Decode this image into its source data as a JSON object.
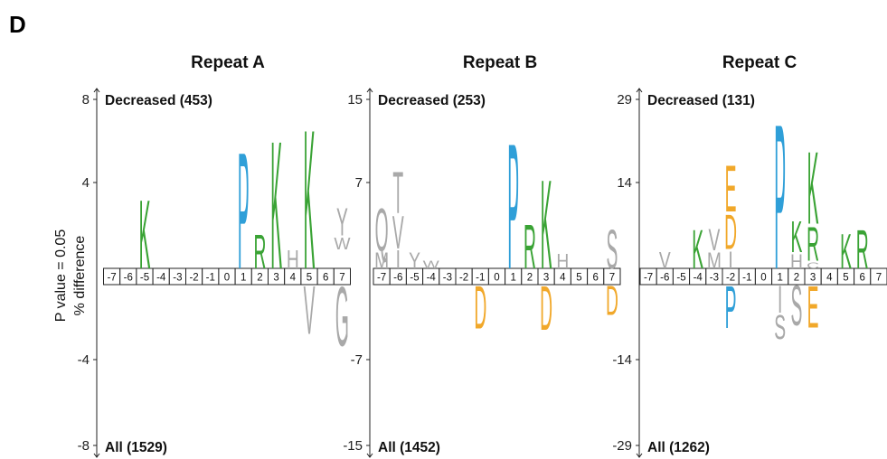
{
  "panel_label": "D",
  "ylabel_line1": "P value = 0.05",
  "ylabel_line2": "% difference",
  "colors": {
    "green": "#3aa335",
    "blue": "#2f9fd8",
    "gray": "#a9a9a9",
    "orange": "#f1a82a"
  },
  "chart_data": [
    {
      "type": "sequence-logo",
      "title": "Repeat A",
      "top_label": "Decreased (453)",
      "bottom_label": "All (1529)",
      "y_ticks": [
        "8",
        "4",
        "-4",
        "-8"
      ],
      "ylim": [
        -8,
        8
      ],
      "positions": [
        "-7",
        "-6",
        "-5",
        "-4",
        "-3",
        "-2",
        "-1",
        "0",
        "1",
        "2",
        "3",
        "4",
        "5",
        "6",
        "7"
      ],
      "letters": [
        {
          "pos": "-5",
          "letter": "K",
          "color": "green",
          "from": 0,
          "to": 3.0
        },
        {
          "pos": "1",
          "letter": "P",
          "color": "blue",
          "from": 0,
          "to": 5.1
        },
        {
          "pos": "2",
          "letter": "R",
          "color": "green",
          "from": 0,
          "to": 1.5
        },
        {
          "pos": "3",
          "letter": "K",
          "color": "green",
          "from": 0,
          "to": 5.6
        },
        {
          "pos": "4",
          "letter": "H",
          "color": "gray",
          "from": 0,
          "to": 0.8
        },
        {
          "pos": "5",
          "letter": "K",
          "color": "green",
          "from": 0,
          "to": 6.1
        },
        {
          "pos": "5",
          "letter": "V",
          "color": "gray",
          "from": 0,
          "to": -2.1
        },
        {
          "pos": "7",
          "letter": "W",
          "color": "gray",
          "from": 0.8,
          "to": 1.3
        },
        {
          "pos": "7",
          "letter": "Y",
          "color": "gray",
          "from": 1.4,
          "to": 2.6
        },
        {
          "pos": "7",
          "letter": "G",
          "color": "gray",
          "from": 0,
          "to": -2.6
        }
      ]
    },
    {
      "type": "sequence-logo",
      "title": "Repeat B",
      "top_label": "Decreased (253)",
      "bottom_label": "All (1452)",
      "y_ticks": [
        "15",
        "7",
        "-7",
        "-15"
      ],
      "ylim": [
        -15,
        15
      ],
      "positions": [
        "-7",
        "-6",
        "-5",
        "-4",
        "-3",
        "-2",
        "-1",
        "0",
        "1",
        "2",
        "3",
        "4",
        "5",
        "6",
        "7"
      ],
      "letters": [
        {
          "pos": "-7",
          "letter": "M",
          "color": "gray",
          "from": 0,
          "to": 1.3
        },
        {
          "pos": "-7",
          "letter": "Q",
          "color": "gray",
          "from": 1.4,
          "to": 4.9
        },
        {
          "pos": "-6",
          "letter": "I",
          "color": "gray",
          "from": 0,
          "to": 1.5
        },
        {
          "pos": "-6",
          "letter": "V",
          "color": "gray",
          "from": 1.6,
          "to": 4.3
        },
        {
          "pos": "-6",
          "letter": "T",
          "color": "gray",
          "from": 4.4,
          "to": 7.8
        },
        {
          "pos": "-5",
          "letter": "Y",
          "color": "gray",
          "from": 0,
          "to": 1.3
        },
        {
          "pos": "-4",
          "letter": "W",
          "color": "gray",
          "from": 0,
          "to": 0.6
        },
        {
          "pos": "1",
          "letter": "P",
          "color": "blue",
          "from": 0,
          "to": 10.3
        },
        {
          "pos": "2",
          "letter": "R",
          "color": "green",
          "from": 0,
          "to": 3.6
        },
        {
          "pos": "3",
          "letter": "K",
          "color": "green",
          "from": 0,
          "to": 7.3
        },
        {
          "pos": "3",
          "letter": "D",
          "color": "orange",
          "from": 0,
          "to": -3.6
        },
        {
          "pos": "4",
          "letter": "H",
          "color": "gray",
          "from": 0,
          "to": 1.2
        },
        {
          "pos": "-1",
          "letter": "D",
          "color": "orange",
          "from": 0,
          "to": -3.5
        },
        {
          "pos": "7",
          "letter": "S",
          "color": "gray",
          "from": 0,
          "to": 3.2
        },
        {
          "pos": "7",
          "letter": "D",
          "color": "orange",
          "from": 0,
          "to": -2.4
        }
      ]
    },
    {
      "type": "sequence-logo",
      "title": "Repeat C",
      "top_label": "Decreased (131)",
      "bottom_label": "All (1262)",
      "y_ticks": [
        "29",
        "14",
        "-14",
        "-29"
      ],
      "ylim": [
        -29,
        29
      ],
      "positions": [
        "-7",
        "-6",
        "-5",
        "-4",
        "-3",
        "-2",
        "-1",
        "0",
        "1",
        "2",
        "3",
        "4",
        "5",
        "6",
        "7"
      ],
      "letters": [
        {
          "pos": "-6",
          "letter": "V",
          "color": "gray",
          "from": 0,
          "to": 2.6
        },
        {
          "pos": "-4",
          "letter": "K",
          "color": "green",
          "from": 0,
          "to": 6.1
        },
        {
          "pos": "-3",
          "letter": "M",
          "color": "gray",
          "from": 0,
          "to": 2.5
        },
        {
          "pos": "-3",
          "letter": "V",
          "color": "gray",
          "from": 2.8,
          "to": 6.2
        },
        {
          "pos": "-2",
          "letter": "I",
          "color": "gray",
          "from": 0,
          "to": 2.7
        },
        {
          "pos": "-2",
          "letter": "D",
          "color": "orange",
          "from": 3.0,
          "to": 8.5
        },
        {
          "pos": "-2",
          "letter": "E",
          "color": "orange",
          "from": 8.8,
          "to": 16.2
        },
        {
          "pos": "-2",
          "letter": "P",
          "color": "blue",
          "from": 0,
          "to": -6.7
        },
        {
          "pos": "1",
          "letter": "P",
          "color": "blue",
          "from": 0,
          "to": 23.0
        },
        {
          "pos": "1",
          "letter": "I",
          "color": "gray",
          "from": 0,
          "to": -4.3
        },
        {
          "pos": "1",
          "letter": "S",
          "color": "gray",
          "from": -4.6,
          "to": -8.4
        },
        {
          "pos": "2",
          "letter": "H",
          "color": "gray",
          "from": 0,
          "to": 2.2
        },
        {
          "pos": "2",
          "letter": "K",
          "color": "green",
          "from": 2.5,
          "to": 7.4
        },
        {
          "pos": "2",
          "letter": "S",
          "color": "gray",
          "from": 0,
          "to": -6.3
        },
        {
          "pos": "3",
          "letter": "C",
          "color": "gray",
          "from": 0,
          "to": 0.9
        },
        {
          "pos": "3",
          "letter": "R",
          "color": "green",
          "from": 1.2,
          "to": 6.6
        },
        {
          "pos": "3",
          "letter": "K",
          "color": "green",
          "from": 6.9,
          "to": 18.4
        },
        {
          "pos": "3",
          "letter": "E",
          "color": "orange",
          "from": 0,
          "to": -6.6
        },
        {
          "pos": "5",
          "letter": "K",
          "color": "green",
          "from": 0,
          "to": 5.5
        },
        {
          "pos": "6",
          "letter": "R",
          "color": "green",
          "from": 0,
          "to": 6.1
        }
      ]
    }
  ]
}
